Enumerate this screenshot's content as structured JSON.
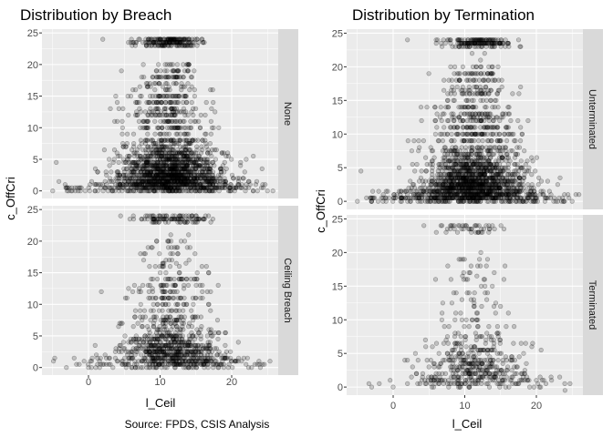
{
  "caption": "Source: FPDS, CSIS Analysis",
  "colors": {
    "panel_bg": "#EBEBEB",
    "grid": "#FFFFFF",
    "strip_bg": "#D9D9D9",
    "point": "#000000",
    "text": "#000000",
    "axis_text": "#4D4D4D"
  },
  "chart_data": [
    {
      "type": "scatter",
      "title": "Distribution by Breach",
      "xlabel": "l_Ceil",
      "ylabel": "c_OffCri",
      "xlim": [
        -6.5,
        26.5
      ],
      "x_ticks": [
        0,
        10,
        20
      ],
      "ylim": [
        -1.2,
        25.6
      ],
      "y_ticks": [
        0,
        5,
        10,
        15,
        20,
        25
      ],
      "grid": true,
      "legend": "none",
      "facets": [
        {
          "label": "None",
          "points_visible": "dense",
          "series": [
            {
              "x": [
                -5,
                -4.5,
                -3,
                -1,
                1,
                3,
                5,
                7,
                9,
                11,
                13,
                15,
                17,
                19,
                21,
                23,
                25
              ],
              "y": [
                0,
                4.5,
                0,
                0.5,
                1,
                2,
                3,
                5,
                6,
                8,
                6,
                4,
                3,
                2,
                1,
                0,
                0
              ]
            },
            {
              "x": [
                2,
                6,
                8,
                10,
                12,
                14,
                16
              ],
              "y": [
                24,
                24,
                24,
                24,
                24,
                24,
                23.5
              ]
            }
          ]
        },
        {
          "label": "Ceiling Breach",
          "points_visible": "moderate",
          "series": [
            {
              "x": [
                0,
                2,
                4,
                6,
                8,
                10,
                12,
                14,
                16,
                18,
                20,
                22,
                24
              ],
              "y": [
                0,
                0.5,
                1,
                2,
                3,
                4,
                5,
                4,
                3,
                2,
                1,
                0.5,
                0
              ]
            },
            {
              "x": [
                8,
                10,
                12,
                14,
                15
              ],
              "y": [
                24,
                23.5,
                23.5,
                23.5,
                24
              ]
            }
          ]
        }
      ]
    },
    {
      "type": "scatter",
      "title": "Distribution by Termination",
      "xlabel": "l_Ceil",
      "ylabel": "c_OffCri",
      "xlim": [
        -6.5,
        26.5
      ],
      "x_ticks": [
        0,
        10,
        20
      ],
      "ylim": [
        -1.2,
        25.6
      ],
      "y_ticks": [
        0,
        5,
        10,
        15,
        20,
        25
      ],
      "grid": true,
      "legend": "none",
      "facets": [
        {
          "label": "Unterminated",
          "points_visible": "dense",
          "series": [
            {
              "x": [
                -5,
                -4.5,
                -3,
                -1,
                1,
                3,
                5,
                7,
                9,
                11,
                13,
                15,
                17,
                19,
                21,
                23,
                25
              ],
              "y": [
                0,
                4.5,
                0,
                0.5,
                1,
                2,
                3,
                5,
                6,
                8,
                6,
                4,
                3,
                2,
                1,
                0,
                0
              ]
            },
            {
              "x": [
                2,
                6,
                8,
                10,
                12,
                14,
                16
              ],
              "y": [
                24,
                24,
                24,
                24,
                24,
                24,
                23.5
              ]
            }
          ]
        },
        {
          "label": "Terminated",
          "points_visible": "sparse",
          "series": [
            {
              "x": [
                -3,
                0,
                2,
                4,
                6,
                8,
                10,
                12,
                14,
                16,
                18,
                20,
                24
              ],
              "y": [
                0,
                0,
                0.5,
                1,
                2,
                3,
                4,
                5,
                4,
                3,
                2,
                1,
                -0.5
              ]
            },
            {
              "x": [
                8,
                10,
                11,
                12,
                13
              ],
              "y": [
                24,
                24,
                23.5,
                24,
                24
              ]
            }
          ]
        }
      ]
    }
  ]
}
